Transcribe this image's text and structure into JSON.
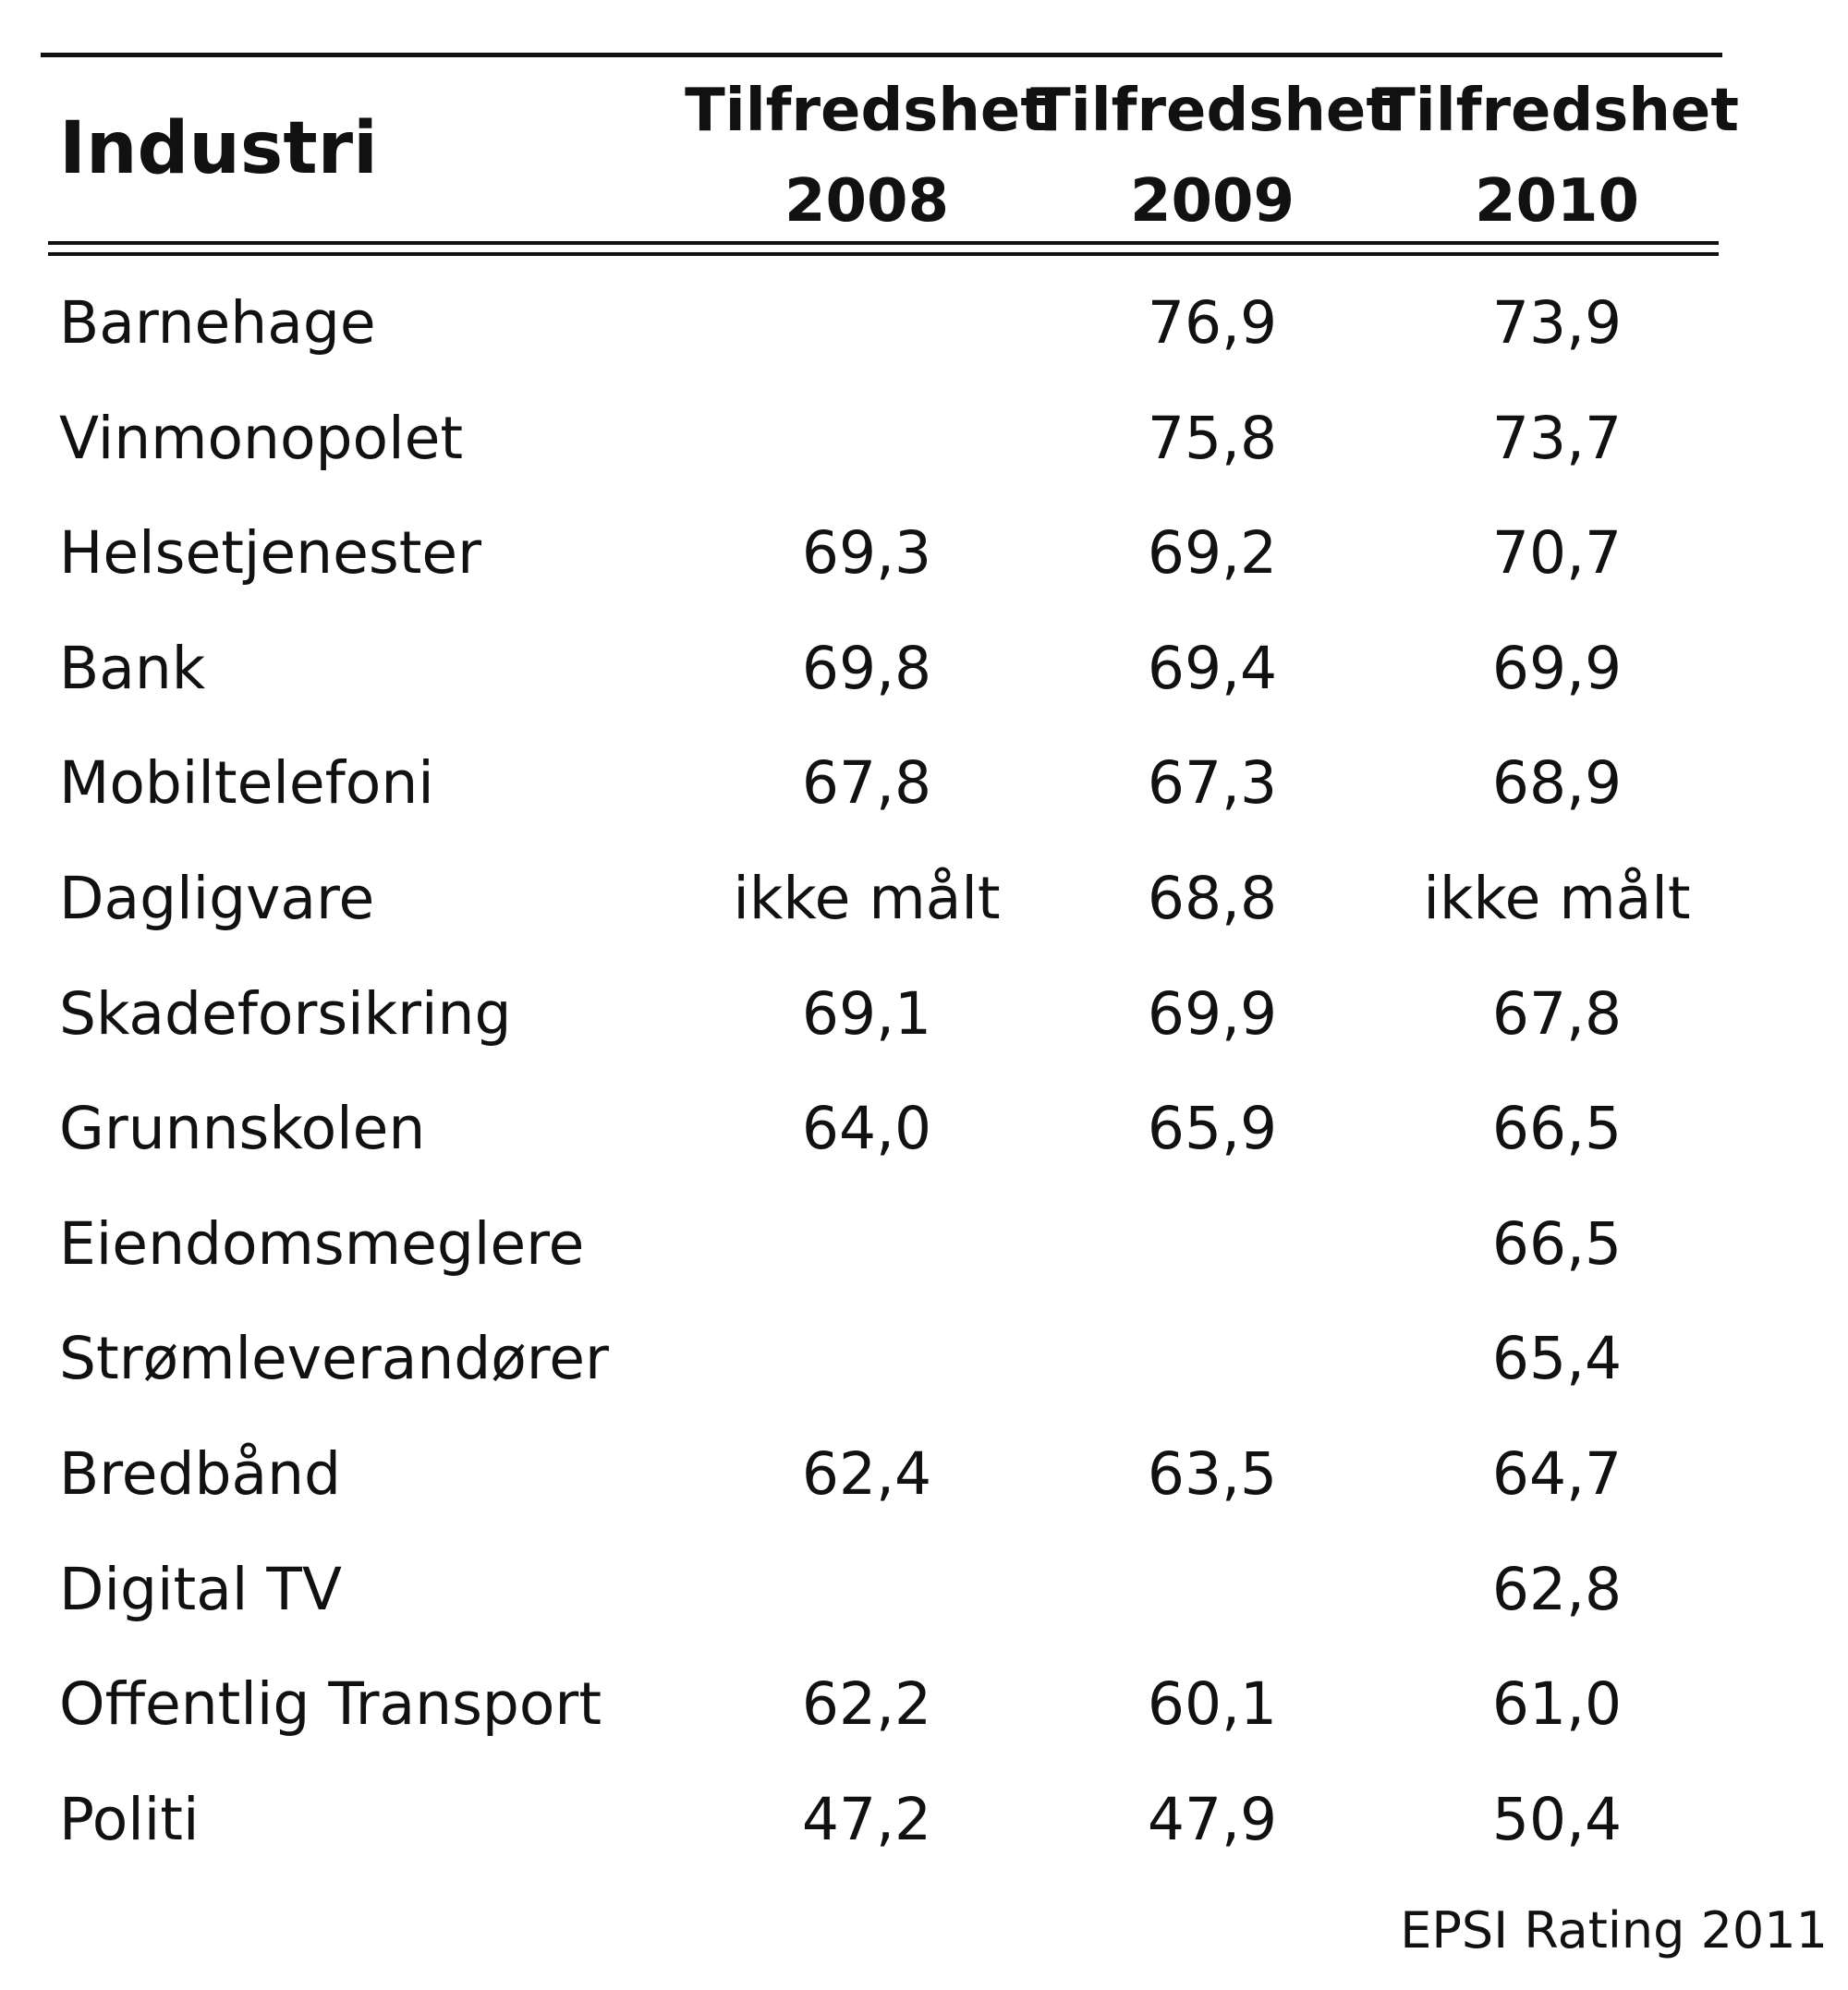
{
  "chart_data": {
    "type": "table",
    "title": "",
    "source": "EPSI Rating 2011",
    "columns": [
      {
        "label": "Tilfredshet",
        "year": "2008"
      },
      {
        "label": "Tilfredshet",
        "year": "2009"
      },
      {
        "label": "Tilfredshet",
        "year": "2010"
      }
    ],
    "row_header": "Industri",
    "rows": [
      {
        "industry": "Barnehage",
        "values": [
          "",
          "76,9",
          "73,9"
        ]
      },
      {
        "industry": "Vinmonopolet",
        "values": [
          "",
          "75,8",
          "73,7"
        ]
      },
      {
        "industry": "Helsetjenester",
        "values": [
          "69,3",
          "69,2",
          "70,7"
        ]
      },
      {
        "industry": "Bank",
        "values": [
          "69,8",
          "69,4",
          "69,9"
        ]
      },
      {
        "industry": "Mobiltelefoni",
        "values": [
          "67,8",
          "67,3",
          "68,9"
        ]
      },
      {
        "industry": "Dagligvare",
        "values": [
          "ikke målt",
          "68,8",
          "ikke målt"
        ]
      },
      {
        "industry": "Skadeforsikring",
        "values": [
          "69,1",
          "69,9",
          "67,8"
        ]
      },
      {
        "industry": "Grunnskolen",
        "values": [
          "64,0",
          "65,9",
          "66,5"
        ]
      },
      {
        "industry": "Eiendomsmeglere",
        "values": [
          "",
          "",
          "66,5"
        ]
      },
      {
        "industry": "Strømleverandører",
        "values": [
          "",
          "",
          "65,4"
        ]
      },
      {
        "industry": "Bredbånd",
        "values": [
          "62,4",
          "63,5",
          "64,7"
        ]
      },
      {
        "industry": "Digital TV",
        "values": [
          "",
          "",
          "62,8"
        ]
      },
      {
        "industry": "Offentlig Transport",
        "values": [
          "62,2",
          "60,1",
          "61,0"
        ]
      },
      {
        "industry": "Politi",
        "values": [
          "47,2",
          "47,9",
          "50,4"
        ]
      }
    ]
  }
}
